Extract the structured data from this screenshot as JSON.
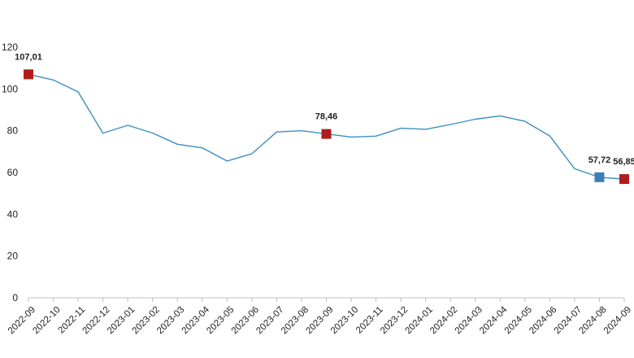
{
  "chart_data": {
    "type": "line",
    "x": [
      "2022-09",
      "2022-10",
      "2022-11",
      "2022-12",
      "2023-01",
      "2023-02",
      "2023-03",
      "2023-04",
      "2023-05",
      "2023-06",
      "2023-07",
      "2023-08",
      "2023-09",
      "2023-10",
      "2023-11",
      "2023-12",
      "2024-01",
      "2024-02",
      "2024-03",
      "2024-04",
      "2024-05",
      "2024-06",
      "2024-07",
      "2024-08",
      "2024-09"
    ],
    "series": [
      {
        "values": [
          107.01,
          104.3,
          98.6,
          78.8,
          82.6,
          78.9,
          73.5,
          71.8,
          65.5,
          69.0,
          79.4,
          80.0,
          78.46,
          77.0,
          77.4,
          81.2,
          80.7,
          83.0,
          85.5,
          87.1,
          84.5,
          77.5,
          61.8,
          57.72,
          56.85
        ],
        "color": "#3a8fc0"
      }
    ],
    "yticks": [
      0,
      20,
      40,
      60,
      80,
      100,
      120
    ],
    "ylim": [
      0,
      120
    ],
    "markers": [
      {
        "index": 0,
        "label": "107,01",
        "color": "#b01c1c"
      },
      {
        "index": 12,
        "label": "78,46",
        "color": "#b01c1c"
      },
      {
        "index": 23,
        "label": "57,72",
        "color": "#3a7fb8"
      },
      {
        "index": 24,
        "label": "56,85",
        "color": "#b01c1c"
      }
    ],
    "title": "",
    "xlabel": "",
    "ylabel": "",
    "grid": false,
    "legend": "none"
  }
}
